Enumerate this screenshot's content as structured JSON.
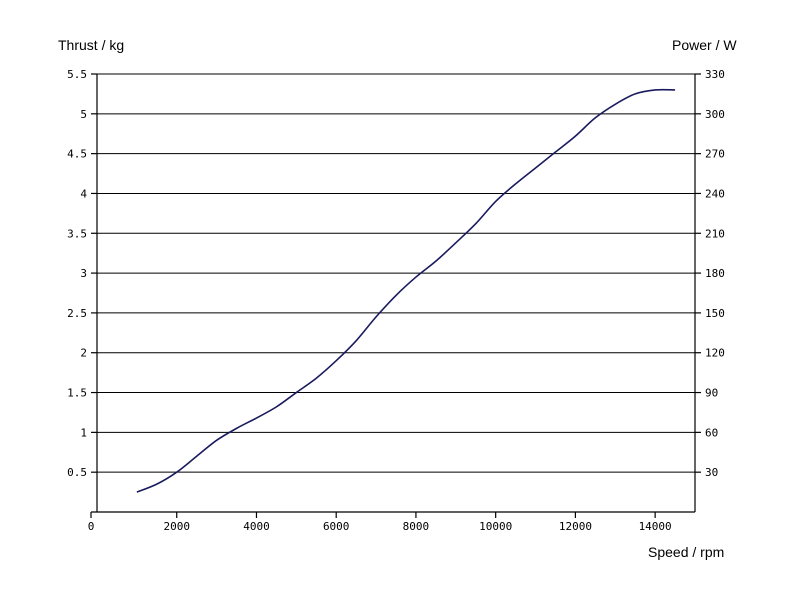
{
  "chart_data": {
    "type": "line",
    "title": "",
    "ylabel": "Thrust / kg",
    "y2label": "Power / W",
    "xlabel": "Speed / rpm",
    "xlim": [
      0,
      15000
    ],
    "ylim": [
      0,
      5.5
    ],
    "y2lim": [
      0,
      330
    ],
    "x_ticks": [
      "0",
      "2000",
      "4000",
      "6000",
      "8000",
      "10000",
      "12000",
      "14000"
    ],
    "y_ticks": [
      "0.5",
      "1",
      "1.5",
      "2",
      "2.5",
      "3",
      "3.5",
      "4",
      "4.5",
      "5",
      "5.5"
    ],
    "y2_ticks": [
      "30",
      "60",
      "90",
      "120",
      "150",
      "180",
      "210",
      "240",
      "270",
      "300",
      "330"
    ],
    "grid": true,
    "colors": {
      "line": "#1a1a5e",
      "grid": "#000000",
      "text": "#000000"
    },
    "series": [
      {
        "x": [
          1000,
          1500,
          2000,
          2500,
          3000,
          3500,
          4000,
          4500,
          5000,
          5500,
          6000,
          6500,
          7000,
          7500,
          8000,
          8500,
          9000,
          9500,
          10000,
          10500,
          11000,
          11500,
          12000,
          12500,
          13000,
          13500,
          14000,
          14500
        ],
        "values": [
          0.25,
          0.35,
          0.5,
          0.7,
          0.9,
          1.05,
          1.18,
          1.32,
          1.5,
          1.68,
          1.9,
          2.15,
          2.45,
          2.72,
          2.95,
          3.15,
          3.38,
          3.62,
          3.9,
          4.12,
          4.32,
          4.52,
          4.72,
          4.95,
          5.12,
          5.25,
          5.3,
          5.3
        ]
      }
    ]
  }
}
